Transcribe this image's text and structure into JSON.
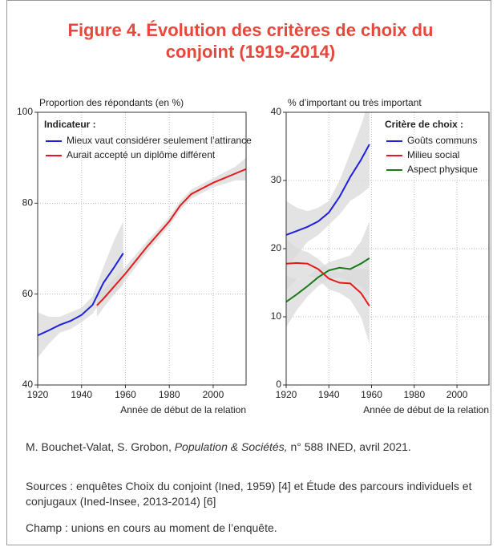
{
  "title": "Figure 4. Évolution des critères de choix du conjoint (1919-2014)",
  "citation": {
    "authors": "M. Bouchet-Valat, S. Grobon, ",
    "journal": "Population & Sociétés,",
    "issue": " n° 588 INED, avril 2021."
  },
  "sources": "Sources : enquêtes Choix du conjoint (Ined, 1959) [4] et Étude des parcours individuels et conjugaux (Ined-Insee, 2013-2014) [6]",
  "champ": "Champ : unions en cours au moment de l’enquête.",
  "chart_data": [
    {
      "type": "line",
      "y_label": "Proportion des répondants (en %)",
      "x_label": "Année de début de la relation",
      "xlim": [
        1920,
        2015
      ],
      "ylim": [
        40,
        100
      ],
      "xticks": [
        1920,
        1940,
        1960,
        1980,
        2000
      ],
      "yticks": [
        40,
        60,
        80,
        100
      ],
      "grid": true,
      "legend_title": "Indicateur :",
      "legend": "upper left",
      "series": [
        {
          "name": "Mieux vaut considérer seulement l’attirance",
          "color": "#1f1fe0",
          "x": [
            1920,
            1925,
            1930,
            1935,
            1940,
            1945,
            1950,
            1955,
            1959
          ],
          "values": [
            50.9,
            52,
            53.2,
            54.1,
            55.4,
            57.6,
            62.5,
            66,
            69
          ],
          "upper": [
            56,
            55,
            55,
            56,
            57,
            59.5,
            66,
            72,
            76
          ],
          "lower": [
            46,
            49,
            51.5,
            52.3,
            53.8,
            55.7,
            59,
            60,
            62
          ]
        },
        {
          "name": "Aurait accepté un diplôme différent",
          "color": "#e41a1c",
          "x": [
            1947,
            1950,
            1960,
            1970,
            1980,
            1985,
            1990,
            2000,
            2010,
            2015
          ],
          "values": [
            57.5,
            59,
            64.5,
            70.5,
            76,
            79.5,
            82,
            84.5,
            86.5,
            87.5
          ],
          "upper": [
            60,
            61,
            66,
            71.7,
            77,
            80.5,
            83,
            85.5,
            88,
            90
          ],
          "lower": [
            55,
            57,
            63,
            69.3,
            75,
            78.5,
            81,
            83.5,
            85,
            85
          ]
        }
      ]
    },
    {
      "type": "line",
      "y_label": "% d’important ou très important",
      "x_label": "Année de début de la relation",
      "xlim": [
        1920,
        2015
      ],
      "ylim": [
        0,
        40
      ],
      "xticks": [
        1920,
        1940,
        1960,
        1980,
        2000
      ],
      "yticks": [
        0,
        10,
        20,
        30,
        40
      ],
      "grid": true,
      "legend_title": "Critère de choix :",
      "legend": "upper right",
      "series": [
        {
          "name": "Goûts communs",
          "color": "#1f1fe0",
          "x": [
            1920,
            1925,
            1930,
            1935,
            1940,
            1945,
            1950,
            1955,
            1959
          ],
          "values": [
            22,
            22.6,
            23.2,
            24,
            25.3,
            27.6,
            30.5,
            33,
            35.3
          ],
          "upper": [
            27,
            26,
            25.5,
            26,
            27,
            30,
            34,
            38,
            42
          ],
          "lower": [
            17,
            19,
            21,
            22,
            23.5,
            25,
            27,
            28,
            29
          ]
        },
        {
          "name": "Milieu social",
          "color": "#e41a1c",
          "x": [
            1920,
            1925,
            1930,
            1935,
            1940,
            1945,
            1950,
            1955,
            1959
          ],
          "values": [
            17.8,
            17.9,
            17.8,
            17,
            15.6,
            15,
            14.9,
            13.5,
            11.6
          ],
          "upper": [
            21.5,
            20,
            19.5,
            18.5,
            17,
            16.5,
            17,
            17,
            17
          ],
          "lower": [
            14,
            15.5,
            16,
            15.5,
            14,
            13.5,
            12.5,
            10,
            6
          ]
        },
        {
          "name": "Aspect physique",
          "color": "#1a7a1a",
          "x": [
            1920,
            1925,
            1930,
            1935,
            1940,
            1945,
            1950,
            1955,
            1959
          ],
          "values": [
            12.2,
            13.3,
            14.5,
            15.8,
            16.8,
            17.2,
            17,
            17.8,
            18.6
          ],
          "upper": [
            16,
            15.5,
            16,
            17,
            18,
            18.5,
            19,
            21,
            24
          ],
          "lower": [
            8.5,
            11,
            13,
            14.5,
            15.5,
            15.8,
            15,
            14.5,
            13
          ]
        }
      ]
    }
  ]
}
